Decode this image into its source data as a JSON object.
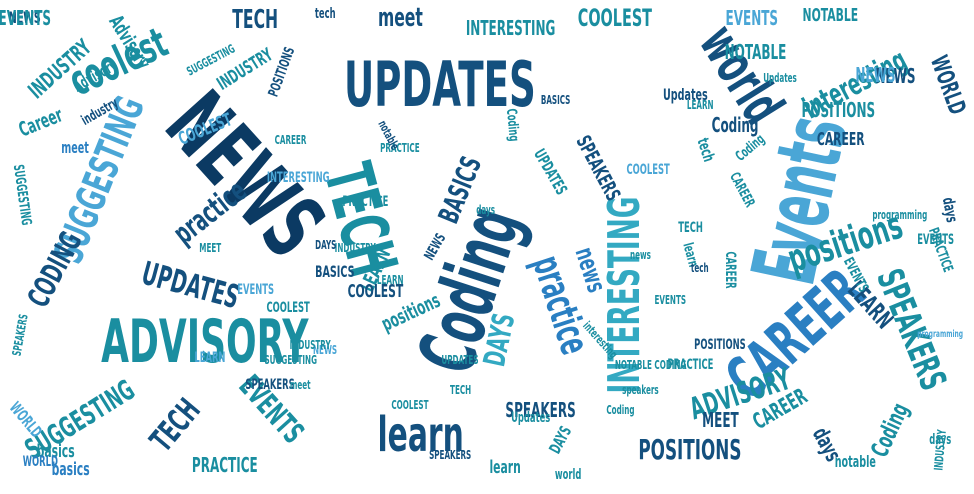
{
  "palette": {
    "navy": "#0b3a63",
    "dark_blue": "#14507e",
    "teal": "#1a8ea0",
    "blue": "#2a7fc2",
    "light_blue": "#4aa6d6",
    "sky": "#62b9de",
    "aqua": "#33a9c2"
  },
  "words": [
    {
      "text": "NEWS",
      "color": "navy"
    },
    {
      "text": "UPDATES",
      "color": "dark_blue"
    },
    {
      "text": "TECH",
      "color": "teal"
    },
    {
      "text": "Coding",
      "color": "dark_blue"
    },
    {
      "text": "Events",
      "color": "light_blue"
    },
    {
      "text": "CAREER",
      "color": "blue"
    },
    {
      "text": "ADVISORY",
      "color": "teal"
    },
    {
      "text": "INTERESTING",
      "color": "aqua"
    },
    {
      "text": "world",
      "color": "dark_blue"
    },
    {
      "text": "practice",
      "color": "blue"
    },
    {
      "text": "learn",
      "color": "dark_blue"
    },
    {
      "text": "SUGGESTING",
      "color": "light_blue"
    },
    {
      "text": "coolest",
      "color": "teal"
    },
    {
      "text": "positions",
      "color": "teal"
    },
    {
      "text": "SPEAKERS",
      "color": "teal"
    },
    {
      "text": "interesting",
      "color": "teal"
    },
    {
      "text": "UPDATES",
      "color": "dark_blue"
    },
    {
      "text": "CODING",
      "color": "dark_blue"
    },
    {
      "text": "TECH",
      "color": "dark_blue"
    },
    {
      "text": "EVENTS",
      "color": "teal"
    },
    {
      "text": "SUGGESTING",
      "color": "teal"
    },
    {
      "text": "POSITIONS",
      "color": "dark_blue"
    },
    {
      "text": "ADVISORY",
      "color": "teal"
    },
    {
      "text": "DAYS",
      "color": "aqua"
    },
    {
      "text": "PRACTICE",
      "color": "teal"
    },
    {
      "text": "INDUSTRY",
      "color": "teal"
    },
    {
      "text": "NOTABLE",
      "color": "teal"
    },
    {
      "text": "COOLEST",
      "color": "teal"
    },
    {
      "text": "meet",
      "color": "dark_blue"
    },
    {
      "text": "INTERESTING",
      "color": "teal"
    },
    {
      "text": "BASICS",
      "color": "dark_blue"
    },
    {
      "text": "news",
      "color": "blue"
    },
    {
      "text": "SPEAKERS",
      "color": "dark_blue"
    },
    {
      "text": "LEARN",
      "color": "dark_blue"
    },
    {
      "text": "MEET",
      "color": "dark_blue"
    },
    {
      "text": "days",
      "color": "dark_blue"
    },
    {
      "text": "Coding",
      "color": "teal"
    },
    {
      "text": "EVENTS",
      "color": "light_blue"
    },
    {
      "text": "NOTABLE",
      "color": "teal"
    },
    {
      "text": "WORLD",
      "color": "dark_blue"
    },
    {
      "text": "CAREER",
      "color": "teal"
    },
    {
      "text": "PRACTICE",
      "color": "teal"
    },
    {
      "text": "days",
      "color": "dark_blue"
    },
    {
      "text": "programming",
      "color": "teal"
    },
    {
      "text": "EVENTS",
      "color": "teal"
    },
    {
      "text": "CAREER",
      "color": "teal"
    },
    {
      "text": "Advisory",
      "color": "teal"
    },
    {
      "text": "NEWS",
      "color": "dark_blue"
    },
    {
      "text": "SUGGESTING",
      "color": "teal"
    },
    {
      "text": "SPEAKERS",
      "color": "teal"
    },
    {
      "text": "INDUSTRY",
      "color": "teal"
    },
    {
      "text": "Updates",
      "color": "teal"
    },
    {
      "text": "learn",
      "color": "teal"
    },
    {
      "text": "notable",
      "color": "teal"
    },
    {
      "text": "COOLEST",
      "color": "light_blue"
    },
    {
      "text": "MEET",
      "color": "teal"
    },
    {
      "text": "meet",
      "color": "blue"
    },
    {
      "text": "Career",
      "color": "teal"
    },
    {
      "text": "basics",
      "color": "teal"
    },
    {
      "text": "WORLD",
      "color": "light_blue"
    },
    {
      "text": "SUGGESTING",
      "color": "teal"
    },
    {
      "text": "PRACTICE",
      "color": "teal"
    },
    {
      "text": "TECH",
      "color": "dark_blue"
    },
    {
      "text": "LEARN",
      "color": "teal"
    },
    {
      "text": "NEWS",
      "color": "dark_blue"
    },
    {
      "text": "tech",
      "color": "dark_blue"
    },
    {
      "text": "POSITIONS",
      "color": "dark_blue"
    },
    {
      "text": "EVENTS",
      "color": "teal"
    },
    {
      "text": "TECH",
      "color": "teal"
    },
    {
      "text": "NEWS",
      "color": "dark_blue"
    },
    {
      "text": "INDUSTRY",
      "color": "teal"
    },
    {
      "text": "practice",
      "color": "dark_blue"
    },
    {
      "text": "Advisory",
      "color": "teal"
    },
    {
      "text": "industry",
      "color": "dark_blue"
    },
    {
      "text": "tech",
      "color": "teal"
    },
    {
      "text": "COOLEST",
      "color": "light_blue"
    },
    {
      "text": "INTERESTING",
      "color": "light_blue"
    },
    {
      "text": "Coding",
      "color": "teal"
    },
    {
      "text": "UPDATES",
      "color": "teal"
    },
    {
      "text": "POSITIONS",
      "color": "dark_blue"
    },
    {
      "text": "CAREER",
      "color": "teal"
    },
    {
      "text": "SPEAKERS",
      "color": "dark_blue"
    },
    {
      "text": "BASICS",
      "color": "dark_blue"
    },
    {
      "text": "COOLEST",
      "color": "dark_blue"
    },
    {
      "text": "Coding",
      "color": "teal"
    },
    {
      "text": "notable",
      "color": "dark_blue"
    },
    {
      "text": "PRACTICE",
      "color": "teal"
    },
    {
      "text": "LEARN",
      "color": "light_blue"
    },
    {
      "text": "EVENTS",
      "color": "light_blue"
    },
    {
      "text": "COOLEST",
      "color": "teal"
    },
    {
      "text": "Updates",
      "color": "teal"
    },
    {
      "text": "world",
      "color": "teal"
    },
    {
      "text": "learn",
      "color": "teal"
    },
    {
      "text": "DAYS",
      "color": "teal"
    },
    {
      "text": "WORLD",
      "color": "blue"
    },
    {
      "text": "basics",
      "color": "blue"
    },
    {
      "text": "NEWS",
      "color": "light_blue"
    },
    {
      "text": "POSITIONS",
      "color": "teal"
    },
    {
      "text": "Coding",
      "color": "dark_blue"
    },
    {
      "text": "positions",
      "color": "teal"
    },
    {
      "text": "CAREER",
      "color": "dark_blue"
    },
    {
      "text": "interesting",
      "color": "teal"
    },
    {
      "text": "INDUSTRY",
      "color": "teal"
    },
    {
      "text": "NOTABLE CODING",
      "color": "teal"
    },
    {
      "text": "speakers",
      "color": "teal"
    },
    {
      "text": "LEARN",
      "color": "teal"
    },
    {
      "text": "SPEAKERS",
      "color": "dark_blue"
    },
    {
      "text": "days",
      "color": "teal"
    },
    {
      "text": "Updates",
      "color": "dark_blue"
    },
    {
      "text": "EVENTS",
      "color": "teal"
    },
    {
      "text": "tech",
      "color": "dark_blue"
    },
    {
      "text": "CAREER",
      "color": "teal"
    },
    {
      "text": "DAYS",
      "color": "dark_blue"
    },
    {
      "text": "SPEAKERS",
      "color": "dark_blue"
    },
    {
      "text": "PRACTICE",
      "color": "teal"
    },
    {
      "text": "days",
      "color": "teal"
    },
    {
      "text": "NEWS",
      "color": "light_blue"
    },
    {
      "text": "LEARN",
      "color": "teal"
    },
    {
      "text": "BASICS",
      "color": "dark_blue"
    },
    {
      "text": "news",
      "color": "teal"
    },
    {
      "text": "INDUSTRY",
      "color": "teal"
    },
    {
      "text": "EVENTS",
      "color": "teal"
    },
    {
      "text": "Coding",
      "color": "teal"
    },
    {
      "text": "programming",
      "color": "light_blue"
    },
    {
      "text": "UPDATES",
      "color": "teal"
    },
    {
      "text": "SUGGESTING",
      "color": "teal"
    },
    {
      "text": "meet",
      "color": "teal"
    },
    {
      "text": "TECH",
      "color": "teal"
    },
    {
      "text": "COOLEST",
      "color": "teal"
    }
  ]
}
